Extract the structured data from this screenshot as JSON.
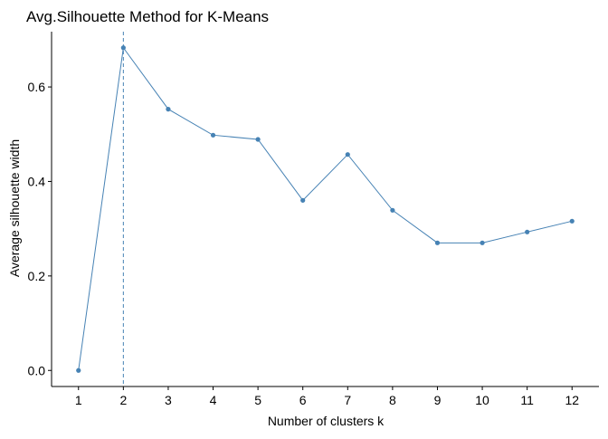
{
  "chart_data": {
    "type": "line",
    "title": "Avg.Silhouette Method for K-Means",
    "xlabel": "Number of clusters k",
    "ylabel": "Average silhouette width",
    "categories": [
      "1",
      "2",
      "3",
      "4",
      "5",
      "6",
      "7",
      "8",
      "9",
      "10",
      "11",
      "12"
    ],
    "values": [
      0.0,
      0.683,
      0.553,
      0.498,
      0.489,
      0.36,
      0.457,
      0.339,
      0.27,
      0.27,
      0.293,
      0.316
    ],
    "ylim": [
      -0.034,
      0.717
    ],
    "yticks": [
      0.0,
      0.2,
      0.4,
      0.6
    ],
    "ytick_labels": [
      "0.0",
      "0.2",
      "0.4",
      "0.6"
    ],
    "optimal_k": "2",
    "grid": false,
    "colors": {
      "line": "#4682b4",
      "point": "#4682b4",
      "vline": "#4682b4",
      "axis": "#000000"
    }
  }
}
